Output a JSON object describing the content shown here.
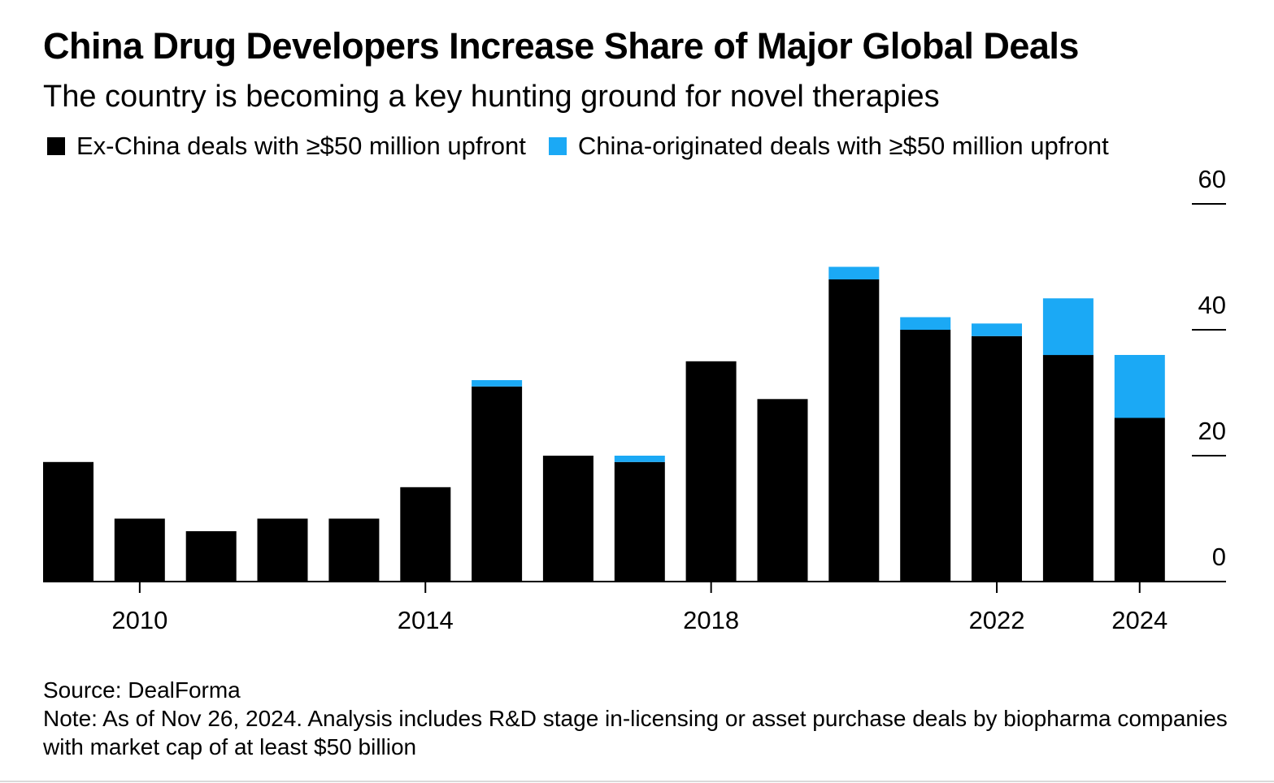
{
  "title": "China Drug Developers Increase Share of Major Global Deals",
  "subtitle": "The country is becoming a key hunting ground for novel therapies",
  "legend": [
    {
      "label": "Ex-China deals with ≥$50 million upfront",
      "color": "#000000"
    },
    {
      "label": "China-originated deals with ≥$50 million upfront",
      "color": "#1ba9f5"
    }
  ],
  "chart_data": {
    "type": "bar",
    "stacked": true,
    "categories": [
      "2009",
      "2010",
      "2011",
      "2012",
      "2013",
      "2014",
      "2015",
      "2016",
      "2017",
      "2018",
      "2019",
      "2020",
      "2021",
      "2022",
      "2023",
      "2024"
    ],
    "series": [
      {
        "name": "Ex-China deals with ≥$50 million upfront",
        "color": "#000000",
        "values": [
          19,
          10,
          8,
          10,
          10,
          15,
          31,
          20,
          19,
          35,
          29,
          48,
          40,
          39,
          36,
          26
        ]
      },
      {
        "name": "China-originated deals with ≥$50 million upfront",
        "color": "#1ba9f5",
        "values": [
          0,
          0,
          0,
          0,
          0,
          0,
          1,
          0,
          1,
          0,
          0,
          2,
          2,
          2,
          9,
          10
        ]
      }
    ],
    "x_tick_labels": [
      "2010",
      "2014",
      "2018",
      "2022",
      "2024"
    ],
    "y_ticks": [
      0,
      20,
      40,
      60
    ],
    "ylim": [
      0,
      60
    ],
    "y_axis_position": "right",
    "grid": false
  },
  "footer": {
    "source": "Source: DealForma",
    "note": "Note: As of Nov 26, 2024. Analysis includes R&D stage in-licensing or asset purchase deals by biopharma companies with market cap of at least $50 billion"
  }
}
